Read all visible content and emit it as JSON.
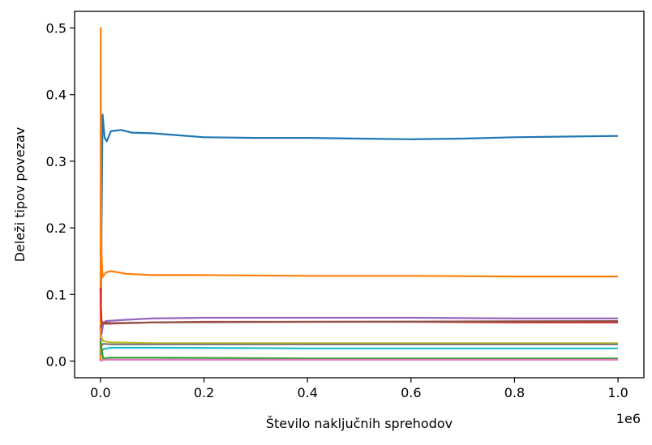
{
  "chart_data": {
    "type": "line",
    "title": "",
    "xlabel": "Število naključnih sprehodov",
    "ylabel": "Deleži tipov povezav",
    "x_offset_label": "1e6",
    "xlim": [
      -0.05,
      1.05
    ],
    "ylim": [
      -0.025,
      0.525
    ],
    "x_ticks": [
      0.0,
      0.2,
      0.4,
      0.6,
      0.8,
      1.0
    ],
    "x_tick_labels": [
      "0.0",
      "0.2",
      "0.4",
      "0.6",
      "0.8",
      "1.0"
    ],
    "y_ticks": [
      0.0,
      0.1,
      0.2,
      0.3,
      0.4,
      0.5
    ],
    "y_tick_labels": [
      "0.0",
      "0.1",
      "0.2",
      "0.3",
      "0.4",
      "0.5"
    ],
    "grid": false,
    "legend": "none",
    "series": [
      {
        "color": "#1f77b4",
        "x": [
          0.0,
          0.002,
          0.004,
          0.008,
          0.012,
          0.02,
          0.04,
          0.06,
          0.1,
          0.15,
          0.2,
          0.3,
          0.4,
          0.5,
          0.6,
          0.7,
          0.8,
          0.9,
          1.0
        ],
        "y": [
          0.0,
          0.2,
          0.37,
          0.335,
          0.33,
          0.345,
          0.347,
          0.343,
          0.342,
          0.339,
          0.336,
          0.335,
          0.335,
          0.334,
          0.333,
          0.334,
          0.336,
          0.337,
          0.338
        ]
      },
      {
        "color": "#ff7f0e",
        "x": [
          0.0,
          0.0005,
          0.001,
          0.002,
          0.004,
          0.01,
          0.02,
          0.05,
          0.1,
          0.2,
          0.4,
          0.6,
          0.8,
          1.0
        ],
        "y": [
          0.0,
          0.5,
          0.3,
          0.16,
          0.126,
          0.133,
          0.135,
          0.131,
          0.129,
          0.129,
          0.128,
          0.128,
          0.127,
          0.127
        ]
      },
      {
        "color": "#9467bd",
        "x": [
          0.0,
          0.005,
          0.01,
          0.05,
          0.1,
          0.2,
          0.4,
          0.6,
          0.8,
          1.0
        ],
        "y": [
          0.03,
          0.055,
          0.06,
          0.062,
          0.064,
          0.065,
          0.065,
          0.065,
          0.064,
          0.064
        ]
      },
      {
        "color": "#d62728",
        "x": [
          0.0,
          0.001,
          0.002,
          0.005,
          0.01,
          0.05,
          0.1,
          0.2,
          0.4,
          0.6,
          0.8,
          1.0
        ],
        "y": [
          0.11,
          0.08,
          0.06,
          0.057,
          0.056,
          0.057,
          0.058,
          0.059,
          0.059,
          0.059,
          0.058,
          0.058
        ]
      },
      {
        "color": "#8c564b",
        "x": [
          0.0,
          0.005,
          0.02,
          0.1,
          0.4,
          1.0
        ],
        "y": [
          0.05,
          0.058,
          0.057,
          0.058,
          0.059,
          0.06
        ]
      },
      {
        "color": "#bcbd22",
        "x": [
          0.0,
          0.005,
          0.02,
          0.1,
          0.4,
          1.0
        ],
        "y": [
          0.04,
          0.03,
          0.028,
          0.027,
          0.027,
          0.027
        ]
      },
      {
        "color": "#7f7f7f",
        "x": [
          0.0,
          0.005,
          0.02,
          0.1,
          0.4,
          1.0
        ],
        "y": [
          0.02,
          0.026,
          0.025,
          0.025,
          0.025,
          0.025
        ]
      },
      {
        "color": "#17becf",
        "x": [
          0.0,
          0.005,
          0.02,
          0.1,
          0.4,
          1.0
        ],
        "y": [
          0.01,
          0.018,
          0.02,
          0.02,
          0.019,
          0.019
        ]
      },
      {
        "color": "#2ca02c",
        "x": [
          0.0,
          0.005,
          0.02,
          0.1,
          0.4,
          1.0
        ],
        "y": [
          0.03,
          0.004,
          0.005,
          0.005,
          0.004,
          0.004
        ]
      },
      {
        "color": "#e377c2",
        "x": [
          0.0,
          0.005,
          0.02,
          0.1,
          0.4,
          1.0
        ],
        "y": [
          0.0,
          0.002,
          0.002,
          0.002,
          0.002,
          0.002
        ]
      }
    ]
  }
}
